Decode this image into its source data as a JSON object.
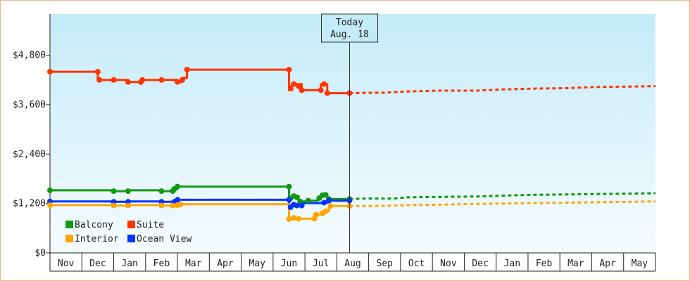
{
  "chart_data": {
    "type": "line",
    "title": "",
    "xlabel": "",
    "ylabel": "",
    "ylim": [
      0,
      5800
    ],
    "yticks": [
      0,
      1200,
      2400,
      3600,
      4800
    ],
    "ytick_labels": [
      "$0",
      "$1,200",
      "$2,400",
      "$3,600",
      "$4,800"
    ],
    "month_labels": [
      "Nov",
      "Dec",
      "Jan",
      "Feb",
      "Mar",
      "Apr",
      "May",
      "Jun",
      "Jul",
      "Aug",
      "Sep",
      "Oct",
      "Nov",
      "Dec",
      "Jan",
      "Feb",
      "Mar",
      "Apr",
      "May"
    ],
    "xlim": [
      0,
      19
    ],
    "today": {
      "line1": "Today",
      "line2": "Aug. 18",
      "x": 9.4
    },
    "legend_placement": "bottom-left",
    "colors": {
      "Balcony": "#119911",
      "Suite": "#ff3300",
      "Interior": "#ffa500",
      "Ocean View": "#0033ff"
    },
    "legend_order": [
      "Balcony",
      "Suite",
      "Interior",
      "Ocean View"
    ],
    "series": [
      {
        "name": "Suite",
        "history": [
          [
            0,
            4400
          ],
          [
            1.5,
            4400
          ],
          [
            1.5,
            4200
          ],
          [
            2,
            4200
          ],
          [
            2.45,
            4200
          ],
          [
            2.45,
            4150
          ],
          [
            2.85,
            4150
          ],
          [
            2.85,
            4200
          ],
          [
            3.5,
            4200
          ],
          [
            4,
            4200
          ],
          [
            4,
            4150
          ],
          [
            4.15,
            4150
          ],
          [
            4.15,
            4250
          ],
          [
            4.3,
            4250
          ],
          [
            4.3,
            4450
          ],
          [
            7.5,
            4450
          ],
          [
            7.5,
            3950
          ],
          [
            7.6,
            3950
          ],
          [
            7.6,
            4100
          ],
          [
            7.9,
            4100
          ],
          [
            7.9,
            3950
          ],
          [
            8.5,
            3950
          ],
          [
            8.5,
            4100
          ],
          [
            8.7,
            4100
          ],
          [
            8.7,
            3880
          ],
          [
            9.4,
            3880
          ]
        ],
        "markers": [
          [
            0,
            4400
          ],
          [
            1.5,
            4400
          ],
          [
            1.55,
            4200
          ],
          [
            2,
            4200
          ],
          [
            2.45,
            4150
          ],
          [
            2.85,
            4150
          ],
          [
            2.9,
            4200
          ],
          [
            3.5,
            4200
          ],
          [
            4,
            4150
          ],
          [
            4.15,
            4200
          ],
          [
            4.3,
            4450
          ],
          [
            7.5,
            4450
          ],
          [
            7.55,
            4000
          ],
          [
            7.65,
            4100
          ],
          [
            7.8,
            4050
          ],
          [
            7.9,
            3950
          ],
          [
            8.5,
            3950
          ],
          [
            8.6,
            4100
          ],
          [
            8.7,
            3880
          ],
          [
            9.4,
            3880
          ]
        ],
        "forecast": [
          [
            9.4,
            3880
          ],
          [
            10,
            3890
          ],
          [
            10.5,
            3890
          ],
          [
            11.2,
            3920
          ],
          [
            12.2,
            3940
          ],
          [
            13.4,
            3940
          ],
          [
            14.2,
            3970
          ],
          [
            15.2,
            3990
          ],
          [
            16.2,
            4000
          ],
          [
            17.1,
            4030
          ],
          [
            18.2,
            4040
          ],
          [
            19,
            4050
          ]
        ]
      },
      {
        "name": "Balcony",
        "history": [
          [
            0,
            1520
          ],
          [
            2,
            1520
          ],
          [
            2,
            1500
          ],
          [
            2.45,
            1500
          ],
          [
            2.45,
            1520
          ],
          [
            3.5,
            1520
          ],
          [
            3.5,
            1500
          ],
          [
            3.85,
            1500
          ],
          [
            3.85,
            1550
          ],
          [
            4,
            1550
          ],
          [
            4,
            1610
          ],
          [
            7.5,
            1610
          ],
          [
            7.5,
            1330
          ],
          [
            7.6,
            1330
          ],
          [
            7.6,
            1380
          ],
          [
            7.8,
            1380
          ],
          [
            7.8,
            1250
          ],
          [
            8.1,
            1250
          ],
          [
            8.1,
            1270
          ],
          [
            8.4,
            1270
          ],
          [
            8.4,
            1340
          ],
          [
            8.5,
            1340
          ],
          [
            8.5,
            1410
          ],
          [
            8.7,
            1410
          ],
          [
            8.7,
            1310
          ],
          [
            9.4,
            1310
          ]
        ],
        "markers": [
          [
            0,
            1520
          ],
          [
            2,
            1500
          ],
          [
            2.45,
            1500
          ],
          [
            3.5,
            1500
          ],
          [
            3.85,
            1500
          ],
          [
            3.9,
            1550
          ],
          [
            4,
            1610
          ],
          [
            7.5,
            1610
          ],
          [
            7.55,
            1330
          ],
          [
            7.65,
            1380
          ],
          [
            7.75,
            1350
          ],
          [
            7.85,
            1250
          ],
          [
            8.1,
            1270
          ],
          [
            8.45,
            1330
          ],
          [
            8.55,
            1400
          ],
          [
            8.65,
            1410
          ],
          [
            8.75,
            1310
          ],
          [
            9.4,
            1310
          ]
        ],
        "forecast": [
          [
            9.4,
            1310
          ],
          [
            10,
            1320
          ],
          [
            10.8,
            1320
          ],
          [
            11.2,
            1350
          ],
          [
            12.2,
            1360
          ],
          [
            13.4,
            1370
          ],
          [
            14.2,
            1390
          ],
          [
            15.2,
            1410
          ],
          [
            16.2,
            1420
          ],
          [
            17.1,
            1430
          ],
          [
            18.2,
            1440
          ],
          [
            19,
            1450
          ]
        ]
      },
      {
        "name": "Ocean View",
        "history": [
          [
            0,
            1250
          ],
          [
            2,
            1250
          ],
          [
            2,
            1240
          ],
          [
            2.45,
            1240
          ],
          [
            2.45,
            1250
          ],
          [
            3.5,
            1250
          ],
          [
            3.5,
            1240
          ],
          [
            3.9,
            1240
          ],
          [
            3.9,
            1260
          ],
          [
            4,
            1260
          ],
          [
            4,
            1290
          ],
          [
            7.5,
            1290
          ],
          [
            7.5,
            1110
          ],
          [
            7.6,
            1110
          ],
          [
            7.6,
            1170
          ],
          [
            7.8,
            1170
          ],
          [
            7.8,
            1150
          ],
          [
            7.95,
            1150
          ],
          [
            7.95,
            1210
          ],
          [
            8.5,
            1210
          ],
          [
            8.5,
            1220
          ],
          [
            8.7,
            1220
          ],
          [
            8.7,
            1270
          ],
          [
            9.4,
            1270
          ]
        ],
        "markers": [
          [
            0,
            1250
          ],
          [
            2,
            1240
          ],
          [
            2.45,
            1240
          ],
          [
            3.5,
            1240
          ],
          [
            3.9,
            1240
          ],
          [
            4,
            1290
          ],
          [
            7.5,
            1290
          ],
          [
            7.55,
            1110
          ],
          [
            7.65,
            1170
          ],
          [
            7.75,
            1150
          ],
          [
            7.9,
            1150
          ],
          [
            8.6,
            1220
          ],
          [
            8.75,
            1270
          ],
          [
            9.4,
            1270
          ]
        ],
        "forecast": []
      },
      {
        "name": "Interior",
        "history": [
          [
            0,
            1160
          ],
          [
            2,
            1160
          ],
          [
            2,
            1150
          ],
          [
            2.45,
            1150
          ],
          [
            2.45,
            1160
          ],
          [
            3.5,
            1160
          ],
          [
            3.5,
            1150
          ],
          [
            3.85,
            1150
          ],
          [
            3.85,
            1160
          ],
          [
            4,
            1160
          ],
          [
            4,
            1180
          ],
          [
            7.5,
            1180
          ],
          [
            7.5,
            820
          ],
          [
            7.65,
            820
          ],
          [
            7.65,
            850
          ],
          [
            7.8,
            850
          ],
          [
            7.8,
            830
          ],
          [
            8.3,
            830
          ],
          [
            8.3,
            930
          ],
          [
            8.55,
            930
          ],
          [
            8.55,
            1010
          ],
          [
            8.75,
            1010
          ],
          [
            8.75,
            1140
          ],
          [
            9.4,
            1140
          ]
        ],
        "markers": [
          [
            0,
            1160
          ],
          [
            2,
            1150
          ],
          [
            2.45,
            1150
          ],
          [
            3.5,
            1150
          ],
          [
            3.85,
            1150
          ],
          [
            4,
            1160
          ],
          [
            4.1,
            1180
          ],
          [
            7.5,
            820
          ],
          [
            7.65,
            850
          ],
          [
            7.8,
            830
          ],
          [
            8.3,
            830
          ],
          [
            8.35,
            930
          ],
          [
            8.55,
            960
          ],
          [
            8.65,
            1010
          ],
          [
            8.8,
            1140
          ],
          [
            9.4,
            1140
          ]
        ],
        "forecast": [
          [
            9.4,
            1140
          ],
          [
            10,
            1140
          ],
          [
            10.9,
            1150
          ],
          [
            11.2,
            1160
          ],
          [
            12.2,
            1170
          ],
          [
            13.4,
            1190
          ],
          [
            14.2,
            1200
          ],
          [
            15.2,
            1210
          ],
          [
            16.2,
            1220
          ],
          [
            17.1,
            1230
          ],
          [
            18.2,
            1240
          ],
          [
            19,
            1250
          ]
        ]
      }
    ]
  }
}
